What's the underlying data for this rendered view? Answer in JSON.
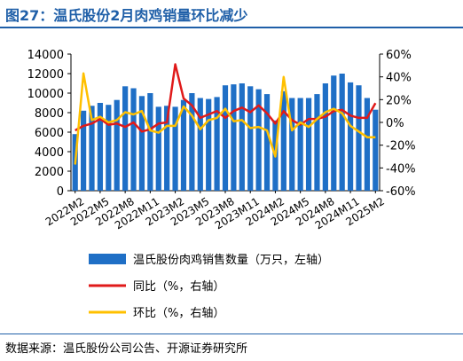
{
  "header": {
    "title": "图27：温氏股份2月肉鸡销量环比减少"
  },
  "footer": {
    "source": "数据来源：温氏股份公司公告、开源证券研究所"
  },
  "colors": {
    "bar": "#1f6fc6",
    "yoy": "#e01a1a",
    "mom": "#ffc000",
    "title": "#1f5fa8"
  },
  "chart_data": {
    "type": "bar",
    "title": "图27：温氏股份2月肉鸡销量环比减少",
    "xlabel": "",
    "ylabel": "",
    "ylim": [
      0,
      14000
    ],
    "y2lim": [
      -60,
      60
    ],
    "yticks": [
      0,
      2000,
      4000,
      6000,
      8000,
      10000,
      12000,
      14000
    ],
    "y2ticks": [
      -60,
      -40,
      -20,
      0,
      20,
      40,
      60
    ],
    "y2_tick_labels": [
      "-60%",
      "-40%",
      "-20%",
      "0%",
      "20%",
      "40%",
      "60%"
    ],
    "x_tick_labels": [
      "2022M2",
      "2022M5",
      "2022M8",
      "2022M11",
      "2023M2",
      "2023M5",
      "2023M8",
      "2023M11",
      "2024M2",
      "2024M5",
      "2024M8",
      "2024M11",
      "2025M2"
    ],
    "categories": [
      "2022M2",
      "2022M3",
      "2022M4",
      "2022M5",
      "2022M6",
      "2022M7",
      "2022M8",
      "2022M9",
      "2022M10",
      "2022M11",
      "2022M12",
      "2023M1",
      "2023M2",
      "2023M3",
      "2023M4",
      "2023M5",
      "2023M6",
      "2023M7",
      "2023M8",
      "2023M9",
      "2023M10",
      "2023M11",
      "2023M12",
      "2024M1",
      "2024M2",
      "2024M3",
      "2024M4",
      "2024M5",
      "2024M6",
      "2024M7",
      "2024M8",
      "2024M9",
      "2024M10",
      "2024M11",
      "2024M12",
      "2025M1",
      "2025M2"
    ],
    "legend_position": "bottom",
    "series": [
      {
        "name": "温氏股份肉鸡销售数量（万只，左轴）",
        "type": "bar",
        "axis": "left",
        "values": [
          5800,
          8200,
          8700,
          9000,
          8800,
          9300,
          10700,
          10500,
          9700,
          10000,
          8600,
          8700,
          8600,
          9300,
          10000,
          9500,
          9400,
          9600,
          10800,
          10900,
          11000,
          10700,
          10400,
          9900,
          7200,
          10200,
          9500,
          9500,
          9500,
          9900,
          11000,
          11800,
          12000,
          11100,
          10800,
          9500,
          8300
        ]
      },
      {
        "name": "同比（%，右轴）",
        "type": "line",
        "axis": "right",
        "values": [
          -7,
          -3,
          -1,
          3,
          -2,
          -1,
          -4,
          0,
          -8,
          -6,
          -1,
          0,
          51,
          21,
          15,
          4,
          7,
          10,
          4,
          10,
          13,
          9,
          15,
          8,
          -1,
          10,
          2,
          -2,
          3,
          3,
          5,
          10,
          11,
          6,
          4,
          4,
          17
        ]
      },
      {
        "name": "环比（%，右轴）",
        "type": "line",
        "axis": "right",
        "values": [
          -37,
          43,
          2,
          5,
          0,
          2,
          9,
          7,
          10,
          -7,
          -9,
          -3,
          -3,
          14,
          6,
          -6,
          2,
          4,
          12,
          1,
          2,
          -5,
          -4,
          -7,
          -30,
          40,
          -7,
          0,
          -4,
          3,
          9,
          12,
          8,
          -3,
          -8,
          -13,
          -13
        ]
      }
    ]
  }
}
